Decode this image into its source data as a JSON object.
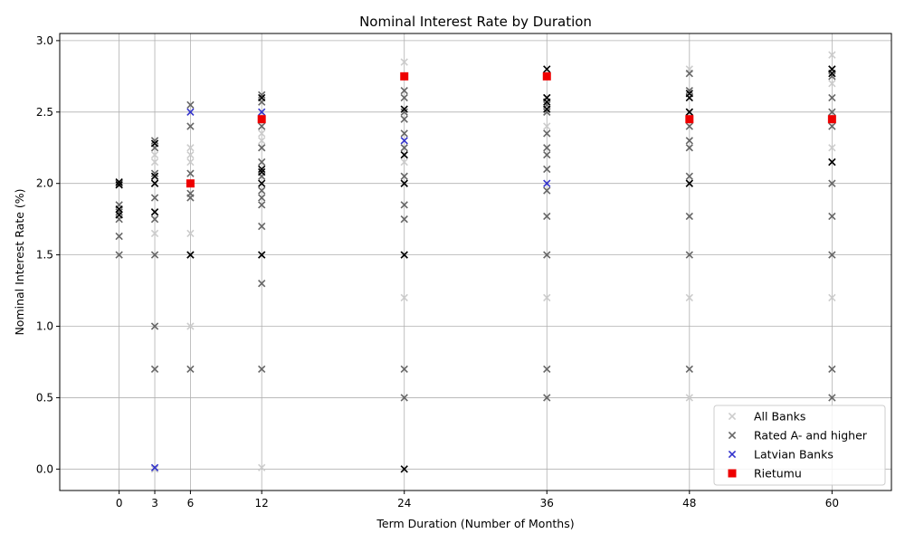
{
  "chart_data": {
    "type": "scatter",
    "title": "Nominal Interest Rate by Duration",
    "xlabel": "Term Duration (Number of Months)",
    "ylabel": "Nominal Interest Rate (%)",
    "xlim": [
      -5,
      65
    ],
    "ylim": [
      -0.15,
      3.05
    ],
    "xticks": [
      0,
      3,
      6,
      12,
      24,
      36,
      48,
      60
    ],
    "yticks": [
      0.0,
      0.5,
      1.0,
      1.5,
      2.0,
      2.5,
      3.0
    ],
    "ytick_labels": [
      "0.0",
      "0.5",
      "1.0",
      "1.5",
      "2.0",
      "2.5",
      "3.0"
    ],
    "grid": true,
    "legend_position": "lower-right",
    "series": [
      {
        "name": "All Banks",
        "marker": "x",
        "color": "#cccccc",
        "points": [
          [
            0,
            2.0
          ],
          [
            0,
            1.8
          ],
          [
            3,
            2.2
          ],
          [
            3,
            2.15
          ],
          [
            3,
            1.65
          ],
          [
            3,
            2.05
          ],
          [
            3,
            0.0
          ],
          [
            6,
            2.25
          ],
          [
            6,
            2.2
          ],
          [
            6,
            1.65
          ],
          [
            6,
            1.0
          ],
          [
            6,
            2.15
          ],
          [
            12,
            2.3
          ],
          [
            12,
            2.25
          ],
          [
            12,
            0.01
          ],
          [
            12,
            2.35
          ],
          [
            24,
            2.85
          ],
          [
            24,
            2.15
          ],
          [
            24,
            1.2
          ],
          [
            24,
            2.25
          ],
          [
            36,
            2.75
          ],
          [
            36,
            2.5
          ],
          [
            36,
            1.2
          ],
          [
            36,
            2.4
          ],
          [
            48,
            2.8
          ],
          [
            48,
            2.5
          ],
          [
            48,
            1.2
          ],
          [
            48,
            0.5
          ],
          [
            60,
            2.9
          ],
          [
            60,
            2.7
          ],
          [
            60,
            2.25
          ],
          [
            60,
            1.2
          ]
        ]
      },
      {
        "name": "Rated A- and higher",
        "marker": "x",
        "color": "#666666",
        "points": [
          [
            0,
            2.0
          ],
          [
            0,
            1.85
          ],
          [
            0,
            1.8
          ],
          [
            0,
            1.75
          ],
          [
            0,
            1.63
          ],
          [
            0,
            1.5
          ],
          [
            3,
            2.3
          ],
          [
            3,
            2.25
          ],
          [
            3,
            2.07
          ],
          [
            3,
            2.0
          ],
          [
            3,
            1.9
          ],
          [
            3,
            1.8
          ],
          [
            3,
            1.75
          ],
          [
            3,
            1.5
          ],
          [
            3,
            1.0
          ],
          [
            3,
            0.7
          ],
          [
            6,
            2.55
          ],
          [
            6,
            2.4
          ],
          [
            6,
            2.07
          ],
          [
            6,
            2.0
          ],
          [
            6,
            1.93
          ],
          [
            6,
            1.9
          ],
          [
            6,
            1.5
          ],
          [
            6,
            0.7
          ],
          [
            12,
            2.62
          ],
          [
            12,
            2.57
          ],
          [
            12,
            2.4
          ],
          [
            12,
            2.25
          ],
          [
            12,
            2.15
          ],
          [
            12,
            2.05
          ],
          [
            12,
            1.95
          ],
          [
            12,
            1.9
          ],
          [
            12,
            1.85
          ],
          [
            12,
            1.7
          ],
          [
            12,
            1.5
          ],
          [
            12,
            1.3
          ],
          [
            12,
            0.7
          ],
          [
            24,
            2.65
          ],
          [
            24,
            2.6
          ],
          [
            24,
            2.5
          ],
          [
            24,
            2.45
          ],
          [
            24,
            2.35
          ],
          [
            24,
            2.25
          ],
          [
            24,
            2.2
          ],
          [
            24,
            2.05
          ],
          [
            24,
            2.0
          ],
          [
            24,
            1.85
          ],
          [
            24,
            1.75
          ],
          [
            24,
            1.5
          ],
          [
            24,
            0.7
          ],
          [
            24,
            0.5
          ],
          [
            36,
            2.6
          ],
          [
            36,
            2.55
          ],
          [
            36,
            2.5
          ],
          [
            36,
            2.35
          ],
          [
            36,
            2.25
          ],
          [
            36,
            2.2
          ],
          [
            36,
            2.1
          ],
          [
            36,
            1.95
          ],
          [
            36,
            1.77
          ],
          [
            36,
            1.5
          ],
          [
            36,
            0.7
          ],
          [
            36,
            0.5
          ],
          [
            48,
            2.77
          ],
          [
            48,
            2.65
          ],
          [
            48,
            2.5
          ],
          [
            48,
            2.4
          ],
          [
            48,
            2.3
          ],
          [
            48,
            2.25
          ],
          [
            48,
            2.05
          ],
          [
            48,
            2.0
          ],
          [
            48,
            1.77
          ],
          [
            48,
            1.5
          ],
          [
            48,
            0.7
          ],
          [
            60,
            2.8
          ],
          [
            60,
            2.75
          ],
          [
            60,
            2.6
          ],
          [
            60,
            2.5
          ],
          [
            60,
            2.4
          ],
          [
            60,
            2.15
          ],
          [
            60,
            2.0
          ],
          [
            60,
            1.77
          ],
          [
            60,
            1.5
          ],
          [
            60,
            0.7
          ],
          [
            60,
            0.5
          ]
        ]
      },
      {
        "name": "",
        "marker": "x",
        "color": "#000000",
        "points": [
          [
            0,
            2.01
          ],
          [
            0,
            1.99
          ],
          [
            0,
            1.82
          ],
          [
            0,
            1.78
          ],
          [
            3,
            2.28
          ],
          [
            3,
            2.05
          ],
          [
            3,
            2.0
          ],
          [
            3,
            1.8
          ],
          [
            6,
            1.5
          ],
          [
            12,
            2.6
          ],
          [
            12,
            2.1
          ],
          [
            12,
            2.08
          ],
          [
            12,
            2.0
          ],
          [
            12,
            1.5
          ],
          [
            24,
            2.52
          ],
          [
            24,
            2.2
          ],
          [
            24,
            2.0
          ],
          [
            24,
            1.5
          ],
          [
            24,
            0.0
          ],
          [
            36,
            2.8
          ],
          [
            36,
            2.6
          ],
          [
            36,
            2.57
          ],
          [
            36,
            2.52
          ],
          [
            48,
            2.63
          ],
          [
            48,
            2.6
          ],
          [
            48,
            2.5
          ],
          [
            48,
            2.0
          ],
          [
            60,
            2.8
          ],
          [
            60,
            2.77
          ],
          [
            60,
            2.15
          ]
        ]
      },
      {
        "name": "Latvian Banks",
        "marker": "x",
        "color": "#3333cc",
        "points": [
          [
            3,
            0.01
          ],
          [
            6,
            2.5
          ],
          [
            12,
            2.5
          ],
          [
            24,
            2.3
          ],
          [
            36,
            2.0
          ]
        ]
      },
      {
        "name": "Rietumu",
        "marker": "s",
        "color": "#ee0000",
        "points": [
          [
            6,
            2.0
          ],
          [
            12,
            2.45
          ],
          [
            24,
            2.75
          ],
          [
            36,
            2.75
          ],
          [
            48,
            2.45
          ],
          [
            60,
            2.45
          ]
        ]
      }
    ]
  },
  "legend": {
    "items": [
      {
        "label": "All Banks",
        "color": "#cccccc",
        "marker": "x"
      },
      {
        "label": "Rated A- and higher",
        "color": "#666666",
        "marker": "x"
      },
      {
        "label": "Latvian Banks",
        "color": "#3333cc",
        "marker": "x"
      },
      {
        "label": "Rietumu",
        "color": "#ee0000",
        "marker": "s"
      }
    ]
  }
}
